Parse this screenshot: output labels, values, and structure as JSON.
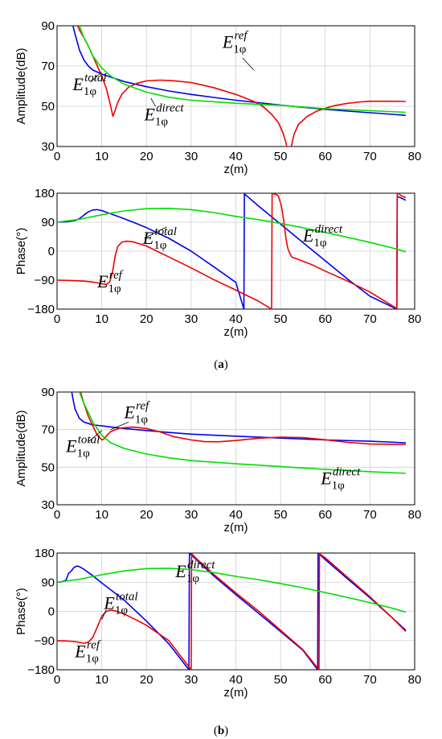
{
  "colors": {
    "total": "#0000ee",
    "ref": "#ee0000",
    "direct": "#00dd00"
  },
  "annotation_labels": {
    "total": {
      "base": "E",
      "sub": "1φ",
      "sup": "total"
    },
    "ref": {
      "base": "E",
      "sub": "1φ",
      "sup": "ref"
    },
    "direct": {
      "base": "E",
      "sub": "1φ",
      "sup": "direct"
    }
  },
  "captions": {
    "a": "a",
    "b": "b"
  },
  "chart_data": [
    {
      "id": "a-amplitude",
      "type": "line",
      "xlabel": "z(m)",
      "ylabel": "Amplitude(dB)",
      "xlim": [
        0,
        80
      ],
      "ylim": [
        30,
        90
      ],
      "xticks": [
        "0",
        "10",
        "20",
        "30",
        "40",
        "50",
        "60",
        "70",
        "80"
      ],
      "yticks": [
        "30",
        "50",
        "70",
        "90"
      ],
      "grid": true,
      "series": [
        {
          "name": "E1φ total",
          "key": "total",
          "x": [
            3,
            4,
            5,
            6,
            7,
            8,
            10,
            12,
            15,
            20,
            25,
            30,
            35,
            40,
            45,
            50,
            55,
            60,
            65,
            70,
            75,
            78
          ],
          "y": [
            95,
            86,
            78,
            73,
            70,
            68,
            66,
            64.5,
            62.3,
            59.7,
            57.6,
            55.9,
            54.4,
            53,
            51.8,
            50.6,
            49.5,
            48.5,
            47.6,
            46.8,
            46,
            45.5
          ]
        },
        {
          "name": "E1φ ref",
          "key": "ref",
          "x": [
            4,
            5,
            6,
            7,
            8,
            9,
            10,
            11,
            11.8,
            12.5,
            13,
            13.6,
            14.5,
            16,
            18,
            20,
            23,
            26,
            30,
            35,
            40,
            44,
            46,
            48,
            49.5,
            50.5,
            51.2,
            51.6,
            52.4,
            53,
            54,
            56,
            58,
            60,
            62,
            65,
            68,
            70,
            74,
            78
          ],
          "y": [
            93,
            88,
            84,
            80,
            75,
            70,
            65,
            59,
            52,
            45,
            48,
            52,
            56,
            59.5,
            61.5,
            62.6,
            63,
            62.7,
            61.8,
            59.3,
            55.9,
            52.4,
            50,
            46,
            42,
            37,
            32,
            28,
            30,
            36,
            41,
            45,
            47.5,
            49,
            50.3,
            51.5,
            52.2,
            52.5,
            52.5,
            52.4
          ]
        },
        {
          "name": "E1φ direct",
          "key": "direct",
          "x": [
            5,
            6,
            7,
            8,
            10,
            12,
            15,
            20,
            25,
            30,
            40,
            50,
            60,
            70,
            78
          ],
          "y": [
            90,
            84,
            80,
            75,
            69,
            65,
            61,
            57,
            54.5,
            53,
            51.5,
            50.5,
            48.8,
            47.8,
            47
          ]
        }
      ],
      "annotations": [
        {
          "key": "ref",
          "at": [
            37,
            79
          ],
          "line": [
            [
              41.5,
              74
            ],
            [
              44,
              68
            ]
          ]
        },
        {
          "key": "total",
          "at": [
            3.5,
            58
          ],
          "line": [
            [
              7.5,
              62
            ],
            [
              10,
              67
            ]
          ]
        },
        {
          "key": "direct",
          "at": [
            19.5,
            43
          ],
          "line": [
            [
              22,
              50
            ],
            [
              21,
              54
            ]
          ]
        }
      ]
    },
    {
      "id": "a-phase",
      "type": "line",
      "xlabel": "z(m)",
      "ylabel": "Phase(°)",
      "xlim": [
        0,
        80
      ],
      "ylim": [
        -180,
        180
      ],
      "xticks": [
        "0",
        "10",
        "20",
        "30",
        "40",
        "50",
        "60",
        "70",
        "80"
      ],
      "yticks": [
        "−180",
        "−90",
        "0",
        "90",
        "180"
      ],
      "yvals": [
        -180,
        -90,
        0,
        90,
        180
      ],
      "grid": true,
      "series": [
        {
          "name": "E1φ total",
          "key": "total",
          "x": [
            0,
            2,
            4,
            5,
            6,
            7,
            8,
            9,
            10,
            11,
            12,
            14,
            17,
            20,
            25,
            30,
            35,
            40,
            41.8,
            41.9,
            45,
            50,
            55,
            60,
            65,
            70,
            76,
            76.1,
            77,
            78
          ],
          "y": [
            90,
            91,
            95,
            101,
            112,
            122,
            128,
            129,
            126,
            121,
            116,
            106,
            90,
            73,
            40,
            0,
            -48,
            -97,
            -180,
            178,
            141,
            84,
            27,
            -30,
            -87,
            -140,
            -180,
            170,
            165,
            158
          ]
        },
        {
          "name": "E1φ ref",
          "key": "ref",
          "x": [
            0,
            3,
            6,
            8,
            10,
            11,
            11.8,
            12.4,
            13,
            13.6,
            14.5,
            15.5,
            17,
            20,
            25,
            30,
            35,
            40,
            45,
            48,
            48.1,
            48.5,
            49,
            49.5,
            50.2,
            50.8,
            51.2,
            51.6,
            52,
            52.5,
            54,
            57,
            60,
            65,
            70,
            76,
            76.1,
            76.5,
            77,
            78
          ],
          "y": [
            -90,
            -91,
            -93,
            -96,
            -101,
            -104,
            -95,
            -65,
            -15,
            15,
            28,
            31,
            29,
            16,
            -18,
            -52,
            -88,
            -121,
            -155,
            -180,
            180,
            178,
            176,
            172,
            140,
            85,
            40,
            10,
            -5,
            -18,
            -26,
            -42,
            -62,
            -93,
            -127,
            -178,
            180,
            178,
            172,
            166
          ]
        },
        {
          "name": "E1φ direct",
          "key": "direct",
          "x": [
            0,
            5,
            10,
            15,
            20,
            25,
            30,
            35,
            40,
            45,
            50,
            55,
            60,
            65,
            70,
            75,
            78
          ],
          "y": [
            90,
            99,
            113,
            125,
            132,
            133,
            129,
            120,
            108,
            98,
            86,
            73,
            58,
            43,
            27,
            10,
            -2
          ]
        }
      ],
      "annotations": [
        {
          "key": "total",
          "at": [
            19.2,
            22
          ],
          "line": [
            [
              19.5,
              40
            ],
            [
              24.5,
              75
            ]
          ]
        },
        {
          "key": "ref",
          "at": [
            9,
            -112
          ],
          "line": null
        },
        {
          "key": "direct",
          "at": [
            55,
            30
          ],
          "line": null
        }
      ]
    },
    {
      "id": "b-amplitude",
      "type": "line",
      "xlabel": "z(m)",
      "ylabel": "Amplitude(dB)",
      "xlim": [
        0,
        80
      ],
      "ylim": [
        30,
        90
      ],
      "xticks": [
        "0",
        "10",
        "20",
        "30",
        "40",
        "50",
        "60",
        "70",
        "80"
      ],
      "yticks": [
        "30",
        "50",
        "70",
        "90"
      ],
      "grid": true,
      "series": [
        {
          "name": "E1φ total",
          "key": "total",
          "x": [
            3,
            3.5,
            4,
            5,
            6,
            8,
            10,
            15,
            20,
            25,
            30,
            40,
            50,
            60,
            70,
            78
          ],
          "y": [
            94,
            87,
            81,
            76,
            74,
            72.5,
            72,
            70.6,
            69.5,
            68.5,
            67.6,
            66.5,
            65.5,
            64.5,
            63.8,
            63
          ]
        },
        {
          "name": "E1φ ref",
          "key": "ref",
          "x": [
            5,
            6,
            7,
            8,
            9,
            10,
            10.5,
            11,
            12,
            14,
            17,
            20,
            23,
            26,
            30,
            33,
            36,
            40,
            45,
            50,
            55,
            60,
            65,
            70,
            75,
            78
          ],
          "y": [
            92,
            84,
            77,
            72,
            67,
            64.5,
            65,
            66.5,
            69,
            70.8,
            71.4,
            70.6,
            68.8,
            66.3,
            64.5,
            63.6,
            63.5,
            64.2,
            65.4,
            66,
            65.8,
            64.6,
            63.2,
            62.3,
            62.2,
            62.2
          ]
        },
        {
          "name": "E1φ direct",
          "key": "direct",
          "x": [
            5,
            6,
            8,
            10,
            12,
            15,
            20,
            25,
            30,
            40,
            50,
            60,
            70,
            78
          ],
          "y": [
            90,
            84,
            74,
            67,
            63,
            60,
            57,
            55,
            53.5,
            51.8,
            50.3,
            48.8,
            47.6,
            46.7
          ]
        }
      ],
      "annotations": [
        {
          "key": "ref",
          "at": [
            15,
            76
          ],
          "line": [
            [
              16,
              74
            ],
            [
              12,
              70
            ]
          ]
        },
        {
          "key": "total",
          "at": [
            2,
            58
          ],
          "line": [
            [
              7,
              63.5
            ],
            [
              10,
              69.5
            ]
          ]
        },
        {
          "key": "direct",
          "at": [
            59,
            41
          ],
          "line": null
        }
      ]
    },
    {
      "id": "b-phase",
      "type": "line",
      "xlabel": "z(m)",
      "ylabel": "Phase(°)",
      "xlim": [
        0,
        80
      ],
      "ylim": [
        -180,
        180
      ],
      "xticks": [
        "0",
        "10",
        "20",
        "30",
        "40",
        "50",
        "60",
        "70",
        "80"
      ],
      "yticks": [
        "−180",
        "−90",
        "0",
        "90",
        "180"
      ],
      "yvals": [
        -180,
        -90,
        0,
        90,
        180
      ],
      "grid": true,
      "series": [
        {
          "name": "E1φ total",
          "key": "total",
          "x": [
            0,
            1,
            2,
            2.6,
            3,
            3.4,
            3.8,
            4.5,
            5,
            6,
            8,
            10,
            15,
            20,
            25,
            29.5,
            29.6,
            31,
            35,
            40,
            45,
            50,
            55,
            58.3,
            58.4,
            60,
            65,
            70,
            75,
            78
          ],
          "y": [
            90,
            91,
            96,
            118,
            122,
            128,
            136,
            140,
            138,
            130,
            110,
            88,
            35,
            -30,
            -100,
            -180,
            180,
            162,
            110,
            52,
            -5,
            -62,
            -120,
            -180,
            180,
            160,
            100,
            42,
            -20,
            -58
          ]
        },
        {
          "name": "E1φ ref",
          "key": "ref",
          "x": [
            0,
            2,
            4,
            6,
            7,
            8,
            9,
            10,
            11,
            12,
            13,
            15,
            18,
            20,
            25,
            30,
            30.1,
            31,
            35,
            40,
            45,
            50,
            55,
            58.6,
            58.7,
            60,
            65,
            70,
            75,
            78
          ],
          "y": [
            -90,
            -91,
            -93,
            -98,
            -95,
            -80,
            -48,
            -15,
            0,
            4,
            2,
            -8,
            -28,
            -43,
            -90,
            -180,
            178,
            165,
            115,
            57,
            2,
            -58,
            -118,
            -180,
            178,
            165,
            105,
            45,
            -20,
            -62
          ]
        },
        {
          "name": "E1φ direct",
          "key": "direct",
          "x": [
            0,
            5,
            10,
            15,
            20,
            25,
            30,
            35,
            40,
            45,
            50,
            55,
            60,
            65,
            70,
            75,
            78
          ],
          "y": [
            90,
            99,
            113,
            125,
            132,
            133,
            129,
            120,
            108,
            98,
            86,
            73,
            58,
            43,
            27,
            10,
            -2
          ]
        }
      ],
      "annotations": [
        {
          "key": "direct",
          "at": [
            26.5,
            105
          ],
          "line": null
        },
        {
          "key": "total",
          "at": [
            10.5,
            7
          ],
          "line": [
            [
              11,
              5
            ],
            [
              10,
              -25
            ]
          ]
        },
        {
          "key": "ref",
          "at": [
            4,
            -142
          ],
          "line": null
        }
      ]
    }
  ]
}
